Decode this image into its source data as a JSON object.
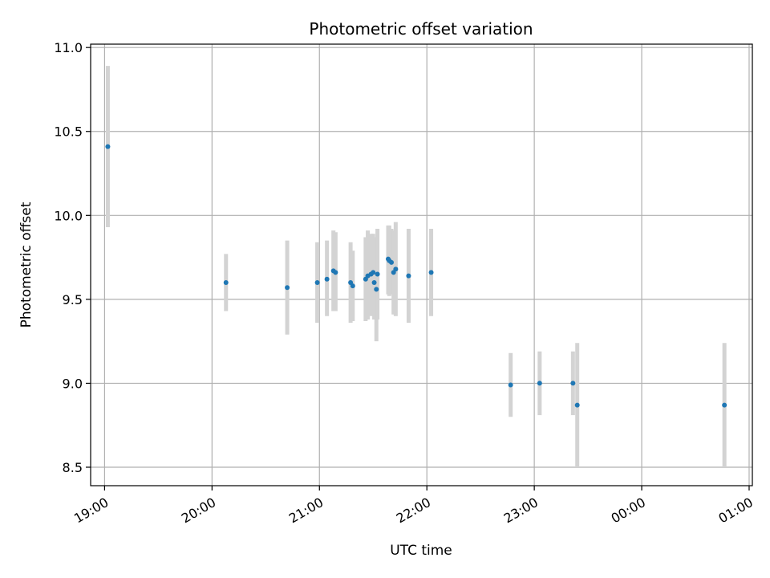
{
  "chart_data": {
    "type": "scatter",
    "title": "Photometric offset variation",
    "xlabel": "UTC time",
    "ylabel": "Photometric offset",
    "x_unit": "hours from 19:00 UTC",
    "xlim": [
      -0.13,
      6.03
    ],
    "ylim": [
      8.39,
      11.02
    ],
    "yticks": [
      8.5,
      9.0,
      9.5,
      10.0,
      10.5,
      11.0
    ],
    "ytick_labels": [
      "8.5",
      "9.0",
      "9.5",
      "10.0",
      "10.5",
      "11.0"
    ],
    "xticks": [
      0,
      1,
      2,
      3,
      4,
      5,
      6
    ],
    "xtick_labels": [
      "19:00",
      "20:00",
      "21:00",
      "22:00",
      "23:00",
      "00:00",
      "01:00"
    ],
    "grid": true,
    "colors": {
      "point": "#1f77b4",
      "errorbar": "#d3d3d3",
      "grid": "#b0b0b0"
    },
    "series": [
      {
        "points": [
          {
            "x": 0.03,
            "y": 10.41,
            "lo": 9.93,
            "hi": 10.89
          },
          {
            "x": 1.13,
            "y": 9.6,
            "lo": 9.43,
            "hi": 9.77
          },
          {
            "x": 1.7,
            "y": 9.57,
            "lo": 9.29,
            "hi": 9.85
          },
          {
            "x": 1.98,
            "y": 9.6,
            "lo": 9.36,
            "hi": 9.84
          },
          {
            "x": 2.07,
            "y": 9.62,
            "lo": 9.4,
            "hi": 9.85
          },
          {
            "x": 2.13,
            "y": 9.67,
            "lo": 9.43,
            "hi": 9.91
          },
          {
            "x": 2.15,
            "y": 9.66,
            "lo": 9.43,
            "hi": 9.9
          },
          {
            "x": 2.29,
            "y": 9.6,
            "lo": 9.36,
            "hi": 9.84
          },
          {
            "x": 2.31,
            "y": 9.58,
            "lo": 9.37,
            "hi": 9.79
          },
          {
            "x": 2.43,
            "y": 9.62,
            "lo": 9.37,
            "hi": 9.87
          },
          {
            "x": 2.45,
            "y": 9.64,
            "lo": 9.38,
            "hi": 9.91
          },
          {
            "x": 2.48,
            "y": 9.65,
            "lo": 9.4,
            "hi": 9.89
          },
          {
            "x": 2.5,
            "y": 9.66,
            "lo": 9.41,
            "hi": 9.89
          },
          {
            "x": 2.51,
            "y": 9.6,
            "lo": 9.38,
            "hi": 9.82
          },
          {
            "x": 2.53,
            "y": 9.56,
            "lo": 9.25,
            "hi": 9.87
          },
          {
            "x": 2.54,
            "y": 9.65,
            "lo": 9.38,
            "hi": 9.92
          },
          {
            "x": 2.64,
            "y": 9.74,
            "lo": 9.53,
            "hi": 9.94
          },
          {
            "x": 2.65,
            "y": 9.73,
            "lo": 9.52,
            "hi": 9.94
          },
          {
            "x": 2.67,
            "y": 9.72,
            "lo": 9.53,
            "hi": 9.92
          },
          {
            "x": 2.69,
            "y": 9.66,
            "lo": 9.41,
            "hi": 9.91
          },
          {
            "x": 2.71,
            "y": 9.68,
            "lo": 9.4,
            "hi": 9.96
          },
          {
            "x": 2.83,
            "y": 9.64,
            "lo": 9.36,
            "hi": 9.92
          },
          {
            "x": 3.04,
            "y": 9.66,
            "lo": 9.4,
            "hi": 9.92
          },
          {
            "x": 3.78,
            "y": 8.99,
            "lo": 8.8,
            "hi": 9.18
          },
          {
            "x": 4.05,
            "y": 9.0,
            "lo": 8.81,
            "hi": 9.19
          },
          {
            "x": 4.36,
            "y": 9.0,
            "lo": 8.81,
            "hi": 9.19
          },
          {
            "x": 4.4,
            "y": 8.87,
            "lo": 8.5,
            "hi": 9.24
          },
          {
            "x": 5.77,
            "y": 8.87,
            "lo": 8.5,
            "hi": 9.24
          }
        ]
      }
    ]
  }
}
